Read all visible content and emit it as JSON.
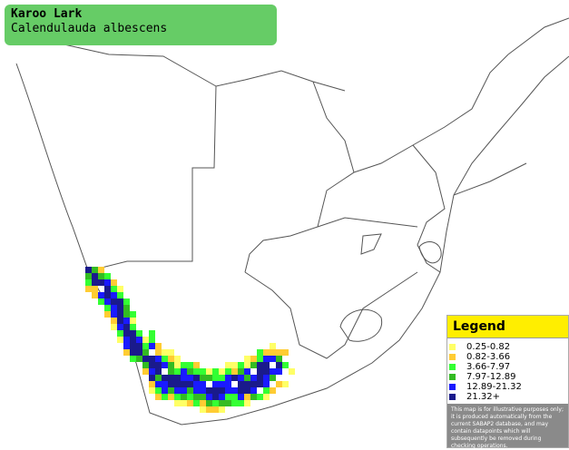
{
  "header": {
    "title": "Karoo Lark",
    "subtitle": "Calendulauda albescens"
  },
  "legend": {
    "title": "Legend",
    "items": [
      {
        "label": "0.25-0.82",
        "color": "#ffff66"
      },
      {
        "label": "0.82-3.66",
        "color": "#ffcc33"
      },
      {
        "label": "3.66-7.97",
        "color": "#33ff33"
      },
      {
        "label": "7.97-12.89",
        "color": "#33bb22"
      },
      {
        "label": "12.89-21.32",
        "color": "#1a1aff"
      },
      {
        "label": "21.32+",
        "color": "#1a1a8c"
      }
    ],
    "disclaimer": "This map is for illustrative purposes only; it is produced automatically from the current SABAP2 database, and may contain datapoints which will subsequently be removed during checking operations."
  }
}
